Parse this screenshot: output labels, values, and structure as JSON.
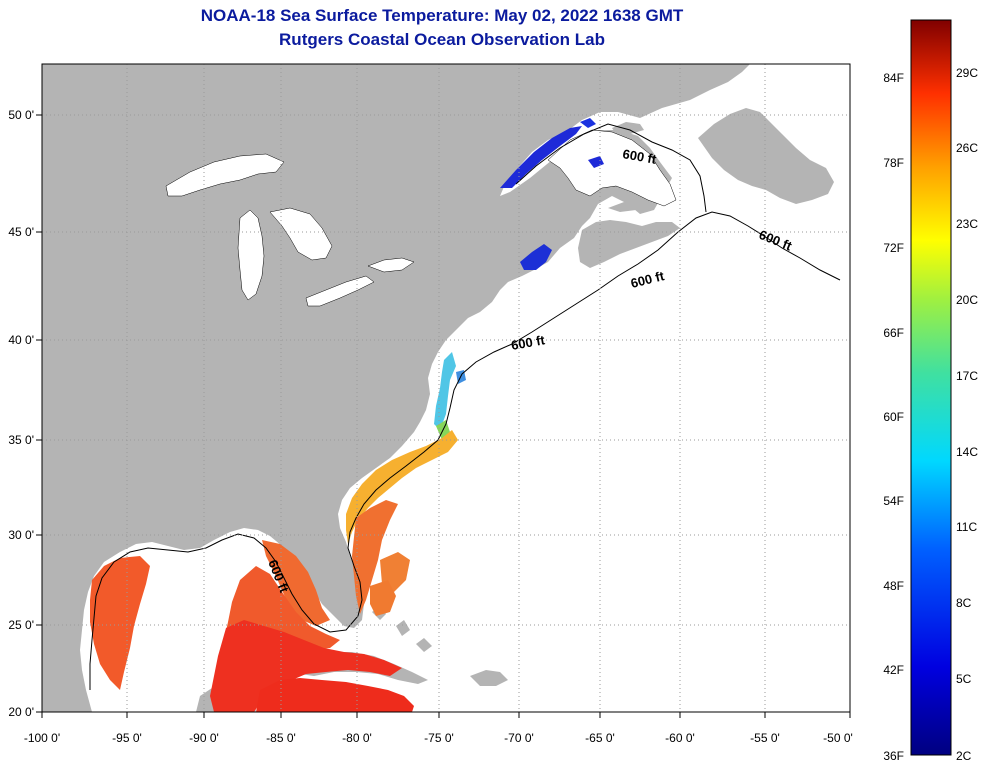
{
  "header": {
    "title_line1": "NOAA-18 Sea Surface Temperature:  May 02, 2022 1638 GMT",
    "title_line2": "Rutgers Coastal Ocean Observation Lab"
  },
  "map": {
    "lon_labels": [
      "-100 0'",
      "-95 0'",
      "-90 0'",
      "-85 0'",
      "-80 0'",
      "-75 0'",
      "-70 0'",
      "-65 0'",
      "-60 0'",
      "-55 0'",
      "-50 0'"
    ],
    "lat_labels": [
      "50 0'",
      "45 0'",
      "40 0'",
      "35 0'",
      "30 0'",
      "25 0'",
      "20 0'"
    ],
    "contour_labels": [
      "600 ft",
      "600 ft",
      "600 ft",
      "600 ft",
      "600 ft"
    ],
    "colors": {
      "land": "#b4b4b4",
      "water": "#ffffff",
      "grid": "#9a9a9a"
    }
  },
  "colorbar": {
    "fahrenheit_labels": [
      "84F",
      "78F",
      "72F",
      "66F",
      "60F",
      "54F",
      "48F",
      "42F",
      "36F"
    ],
    "celsius_labels": [
      "29C",
      "26C",
      "23C",
      "20C",
      "17C",
      "14C",
      "11C",
      "8C",
      "5C",
      "2C"
    ]
  }
}
